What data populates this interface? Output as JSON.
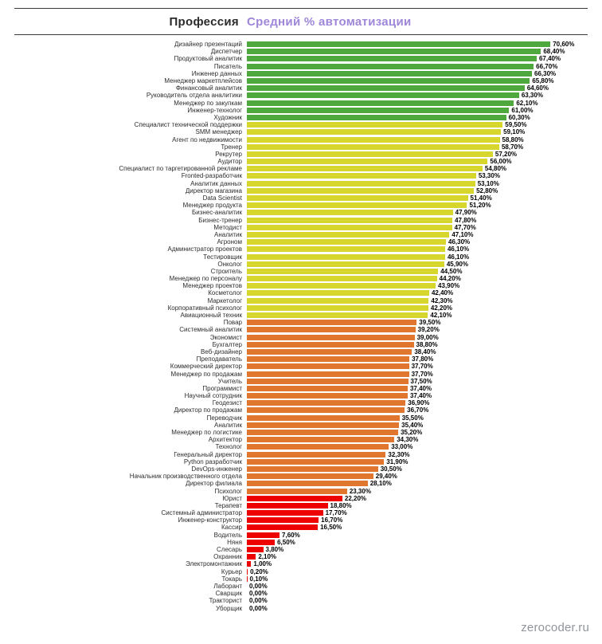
{
  "header": {
    "profession_col": "Профессия",
    "value_col": "Средний % автоматизации"
  },
  "watermark": "zerocoder.ru",
  "colors": {
    "green": "#4fa83d",
    "yellow": "#d7d62c",
    "orange": "#e1762f",
    "red": "#ef0000",
    "header_accent": "#9e86d9"
  },
  "chart_data": {
    "type": "bar",
    "orientation": "horizontal",
    "title": "",
    "category_axis_label": "Профессия",
    "value_axis_label": "Средний % автоматизации",
    "value_range": [
      0,
      70.6
    ],
    "grid": false,
    "legend": "none",
    "rows": [
      {
        "label": "Дизайнер презентаций",
        "value": 70.6,
        "text": "70,60%",
        "color": "green"
      },
      {
        "label": "Диспетчер",
        "value": 68.4,
        "text": "68,40%",
        "color": "green"
      },
      {
        "label": "Продуктовый аналитик",
        "value": 67.4,
        "text": "67,40%",
        "color": "green"
      },
      {
        "label": "Писатель",
        "value": 66.7,
        "text": "66,70%",
        "color": "green"
      },
      {
        "label": "Инженер данных",
        "value": 66.3,
        "text": "66,30%",
        "color": "green"
      },
      {
        "label": "Менеджер маркетплейсов",
        "value": 65.8,
        "text": "65,80%",
        "color": "green"
      },
      {
        "label": "Финансовый аналитик",
        "value": 64.6,
        "text": "64,60%",
        "color": "green"
      },
      {
        "label": "Руководитель отдела аналитики",
        "value": 63.3,
        "text": "63,30%",
        "color": "green"
      },
      {
        "label": "Менеджер по закупкам",
        "value": 62.1,
        "text": "62,10%",
        "color": "green"
      },
      {
        "label": "Инженер-технолог",
        "value": 61.0,
        "text": "61,00%",
        "color": "green"
      },
      {
        "label": "Художник",
        "value": 60.3,
        "text": "60,30%",
        "color": "green"
      },
      {
        "label": "Специалист технической поддержки",
        "value": 59.5,
        "text": "59,50%",
        "color": "yellow"
      },
      {
        "label": "SMM менеджер",
        "value": 59.1,
        "text": "59,10%",
        "color": "yellow"
      },
      {
        "label": "Агент по недвижимости",
        "value": 58.8,
        "text": "58,80%",
        "color": "yellow"
      },
      {
        "label": "Тренер",
        "value": 58.7,
        "text": "58,70%",
        "color": "yellow"
      },
      {
        "label": "Рекрутер",
        "value": 57.2,
        "text": "57,20%",
        "color": "yellow"
      },
      {
        "label": "Аудитор",
        "value": 56.0,
        "text": "56,00%",
        "color": "yellow"
      },
      {
        "label": "Специалист по таргетированной рекламе",
        "value": 54.8,
        "text": "54,80%",
        "color": "yellow"
      },
      {
        "label": "Fronted-разработчик",
        "value": 53.3,
        "text": "53,30%",
        "color": "yellow"
      },
      {
        "label": "Аналитик данных",
        "value": 53.1,
        "text": "53,10%",
        "color": "yellow"
      },
      {
        "label": "Директор магазина",
        "value": 52.8,
        "text": "52,80%",
        "color": "yellow"
      },
      {
        "label": "Data Scientist",
        "value": 51.4,
        "text": "51,40%",
        "color": "yellow"
      },
      {
        "label": "Менеджер продукта",
        "value": 51.2,
        "text": "51,20%",
        "color": "yellow"
      },
      {
        "label": "Бизнес-аналитик",
        "value": 47.9,
        "text": "47,90%",
        "color": "yellow"
      },
      {
        "label": "Бизнес-тренер",
        "value": 47.8,
        "text": "47,80%",
        "color": "yellow"
      },
      {
        "label": "Методист",
        "value": 47.7,
        "text": "47,70%",
        "color": "yellow"
      },
      {
        "label": "Аналитик",
        "value": 47.1,
        "text": "47,10%",
        "color": "yellow"
      },
      {
        "label": "Агроном",
        "value": 46.3,
        "text": "46,30%",
        "color": "yellow"
      },
      {
        "label": "Администратор проектов",
        "value": 46.1,
        "text": "46,10%",
        "color": "yellow"
      },
      {
        "label": "Тестировщик",
        "value": 46.1,
        "text": "46,10%",
        "color": "yellow"
      },
      {
        "label": "Онколог",
        "value": 45.9,
        "text": "45,90%",
        "color": "yellow"
      },
      {
        "label": "Строитель",
        "value": 44.5,
        "text": "44,50%",
        "color": "yellow"
      },
      {
        "label": "Менеджер по персоналу",
        "value": 44.2,
        "text": "44,20%",
        "color": "yellow"
      },
      {
        "label": "Менеджер проектов",
        "value": 43.9,
        "text": "43,90%",
        "color": "yellow"
      },
      {
        "label": "Косметолог",
        "value": 42.4,
        "text": "42,40%",
        "color": "yellow"
      },
      {
        "label": "Маркетолог",
        "value": 42.3,
        "text": "42,30%",
        "color": "yellow"
      },
      {
        "label": "Корпоративный психолог",
        "value": 42.2,
        "text": "42,20%",
        "color": "yellow"
      },
      {
        "label": "Авиационный техник",
        "value": 42.1,
        "text": "42,10%",
        "color": "yellow"
      },
      {
        "label": "Повар",
        "value": 39.5,
        "text": "39,50%",
        "color": "orange"
      },
      {
        "label": "Системный аналитик",
        "value": 39.2,
        "text": "39,20%",
        "color": "orange"
      },
      {
        "label": "Экономист",
        "value": 39.0,
        "text": "39,00%",
        "color": "orange"
      },
      {
        "label": "Бухгалтер",
        "value": 38.8,
        "text": "38,80%",
        "color": "orange"
      },
      {
        "label": "Веб-дизайнер",
        "value": 38.4,
        "text": "38,40%",
        "color": "orange"
      },
      {
        "label": "Преподаватель",
        "value": 37.8,
        "text": "37,80%",
        "color": "orange"
      },
      {
        "label": "Коммерческий директор",
        "value": 37.7,
        "text": "37,70%",
        "color": "orange"
      },
      {
        "label": "Менеджер по продажам",
        "value": 37.7,
        "text": "37,70%",
        "color": "orange"
      },
      {
        "label": "Учитель",
        "value": 37.5,
        "text": "37,50%",
        "color": "orange"
      },
      {
        "label": "Программист",
        "value": 37.4,
        "text": "37,40%",
        "color": "orange"
      },
      {
        "label": "Научный сотрудник",
        "value": 37.4,
        "text": "37,40%",
        "color": "orange"
      },
      {
        "label": "Геодезист",
        "value": 36.9,
        "text": "36,90%",
        "color": "orange"
      },
      {
        "label": "Директор по продажам",
        "value": 36.7,
        "text": "36,70%",
        "color": "orange"
      },
      {
        "label": "Переводчик",
        "value": 35.5,
        "text": "35,50%",
        "color": "orange"
      },
      {
        "label": "Аналитик",
        "value": 35.4,
        "text": "35,40%",
        "color": "orange"
      },
      {
        "label": "Менеджер по логистике",
        "value": 35.2,
        "text": "35,20%",
        "color": "orange"
      },
      {
        "label": "Архитектор",
        "value": 34.3,
        "text": "34,30%",
        "color": "orange"
      },
      {
        "label": "Технолог",
        "value": 33.0,
        "text": "33,00%",
        "color": "orange"
      },
      {
        "label": "Генеральный директор",
        "value": 32.3,
        "text": "32,30%",
        "color": "orange"
      },
      {
        "label": "Python разработчик",
        "value": 31.9,
        "text": "31,90%",
        "color": "orange"
      },
      {
        "label": "DevOps-инженер",
        "value": 30.5,
        "text": "30,50%",
        "color": "orange"
      },
      {
        "label": "Начальник производственного отдела",
        "value": 29.4,
        "text": "29,40%",
        "color": "orange"
      },
      {
        "label": "Директор филиала",
        "value": 28.1,
        "text": "28,10%",
        "color": "orange"
      },
      {
        "label": "Психолог",
        "value": 23.3,
        "text": "23,30%",
        "color": "orange"
      },
      {
        "label": "Юрист",
        "value": 22.2,
        "text": "22,20%",
        "color": "red"
      },
      {
        "label": "Терапевт",
        "value": 18.8,
        "text": "18,80%",
        "color": "red"
      },
      {
        "label": "Системный администратор",
        "value": 17.7,
        "text": "17,70%",
        "color": "red"
      },
      {
        "label": "Инженер-конструктор",
        "value": 16.7,
        "text": "16,70%",
        "color": "red"
      },
      {
        "label": "Кассир",
        "value": 16.5,
        "text": "16,50%",
        "color": "red"
      },
      {
        "label": "Водитель",
        "value": 7.6,
        "text": "7,60%",
        "color": "red"
      },
      {
        "label": "Няня",
        "value": 6.5,
        "text": "6,50%",
        "color": "red"
      },
      {
        "label": "Слесарь",
        "value": 3.8,
        "text": "3,80%",
        "color": "red"
      },
      {
        "label": "Охранник",
        "value": 2.1,
        "text": "2,10%",
        "color": "red"
      },
      {
        "label": "Электромонтажник",
        "value": 1.0,
        "text": "1,00%",
        "color": "red"
      },
      {
        "label": "Курьер",
        "value": 0.2,
        "text": "0,20%",
        "color": "red"
      },
      {
        "label": "Токарь",
        "value": 0.1,
        "text": "0,10%",
        "color": "red"
      },
      {
        "label": "Лаборант",
        "value": 0.0,
        "text": "0,00%",
        "color": "red"
      },
      {
        "label": "Сварщик",
        "value": 0.0,
        "text": "0,00%",
        "color": "red"
      },
      {
        "label": "Тракторист",
        "value": 0.0,
        "text": "0,00%",
        "color": "red"
      },
      {
        "label": "Уборщик",
        "value": 0.0,
        "text": "0,00%",
        "color": "red"
      }
    ]
  }
}
